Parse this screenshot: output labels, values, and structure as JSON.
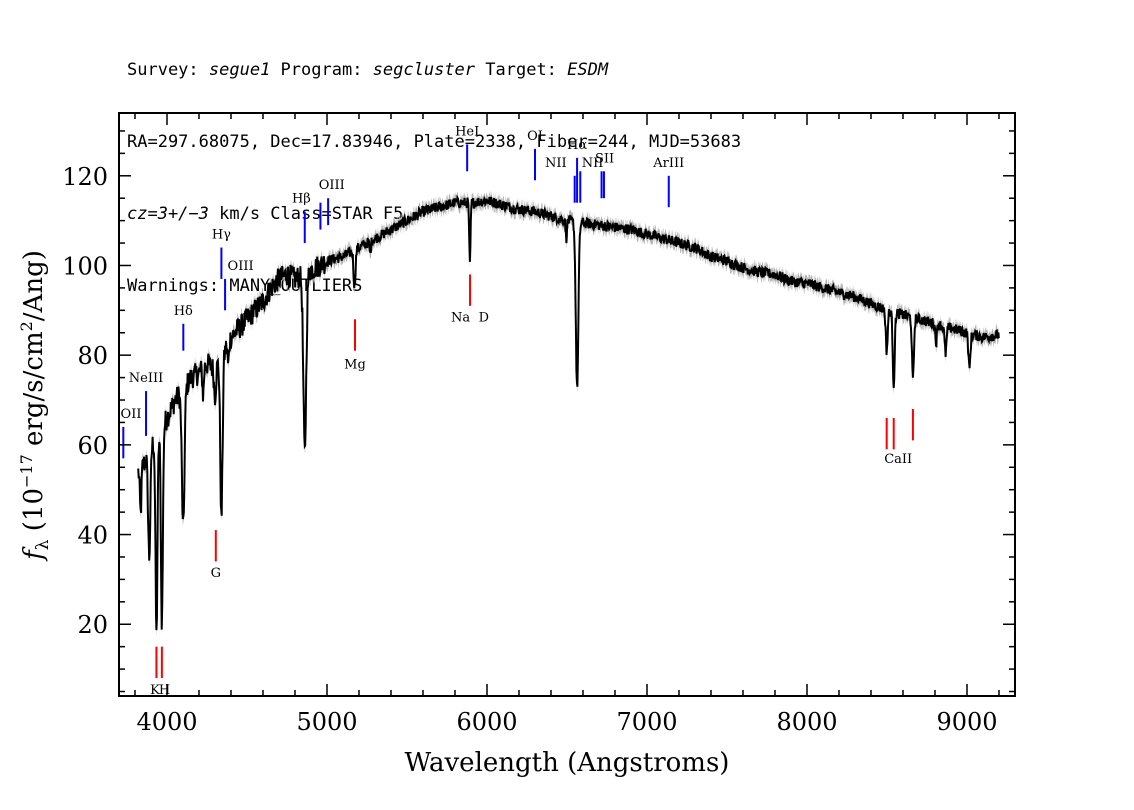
{
  "header": {
    "line1": [
      {
        "text": "Survey: ",
        "italic": false
      },
      {
        "text": "segue1",
        "italic": true
      },
      {
        "text": " Program: ",
        "italic": false
      },
      {
        "text": "segcluster",
        "italic": true
      },
      {
        "text": " Target: ",
        "italic": false
      },
      {
        "text": "ESDM",
        "italic": true
      }
    ],
    "line2": "RA=297.68075, Dec=17.83946, Plate=2338, Fiber=244, MJD=53683",
    "line3": [
      {
        "text": "cz=3+/−3",
        "italic": true
      },
      {
        "text": " km/s Class=STAR F5",
        "italic": false
      }
    ],
    "line4": "Warnings: MANY_OUTLIERS"
  },
  "chart_data": {
    "type": "line",
    "xlabel": "Wavelength (Angstroms)",
    "ylabel_parts": {
      "f": "f",
      "sub": "λ",
      "pre": " (10",
      "exp1": "−17",
      "mid": " erg/s/cm",
      "exp2": "2",
      "post": "/Ang)"
    },
    "xlim": [
      3700,
      9300
    ],
    "ylim": [
      4,
      134
    ],
    "x_ticks": [
      4000,
      5000,
      6000,
      7000,
      8000,
      9000
    ],
    "y_ticks": [
      20,
      40,
      60,
      80,
      100,
      120
    ],
    "x_minor_step": 200,
    "y_minor_step": 5,
    "colors": {
      "spectrum": "#000000",
      "error": "#b3b3b3",
      "emission": "#0000ff",
      "absorption": "#ff0000"
    },
    "continuum": [
      [
        3820,
        54
      ],
      [
        3860,
        56
      ],
      [
        3900,
        60
      ],
      [
        3950,
        62
      ],
      [
        4000,
        66
      ],
      [
        4050,
        70
      ],
      [
        4100,
        72
      ],
      [
        4150,
        75
      ],
      [
        4200,
        76
      ],
      [
        4250,
        78
      ],
      [
        4300,
        77
      ],
      [
        4350,
        80
      ],
      [
        4400,
        84
      ],
      [
        4450,
        86
      ],
      [
        4500,
        88
      ],
      [
        4550,
        90
      ],
      [
        4600,
        92
      ],
      [
        4650,
        95
      ],
      [
        4700,
        97
      ],
      [
        4750,
        98
      ],
      [
        4800,
        97
      ],
      [
        4850,
        98
      ],
      [
        4900,
        99
      ],
      [
        4950,
        100
      ],
      [
        5000,
        101
      ],
      [
        5100,
        102
      ],
      [
        5200,
        104
      ],
      [
        5300,
        106
      ],
      [
        5400,
        108
      ],
      [
        5500,
        110
      ],
      [
        5600,
        112
      ],
      [
        5700,
        113
      ],
      [
        5800,
        114
      ],
      [
        5900,
        114
      ],
      [
        6000,
        114.5
      ],
      [
        6100,
        113.5
      ],
      [
        6200,
        112.5
      ],
      [
        6300,
        112
      ],
      [
        6400,
        111
      ],
      [
        6500,
        110
      ],
      [
        6600,
        109.5
      ],
      [
        6700,
        109
      ],
      [
        6800,
        108.5
      ],
      [
        6900,
        108
      ],
      [
        7000,
        107
      ],
      [
        7100,
        106
      ],
      [
        7200,
        105
      ],
      [
        7300,
        104
      ],
      [
        7400,
        102
      ],
      [
        7500,
        101
      ],
      [
        7600,
        99.5
      ],
      [
        7700,
        98.5
      ],
      [
        7800,
        98
      ],
      [
        7900,
        96.5
      ],
      [
        8000,
        96
      ],
      [
        8100,
        95
      ],
      [
        8200,
        94
      ],
      [
        8300,
        93
      ],
      [
        8400,
        91.5
      ],
      [
        8500,
        90
      ],
      [
        8600,
        89
      ],
      [
        8700,
        88
      ],
      [
        8800,
        87
      ],
      [
        8900,
        86
      ],
      [
        9000,
        85
      ],
      [
        9100,
        84
      ],
      [
        9200,
        84.5
      ]
    ],
    "absorption_features": [
      {
        "center": 3835,
        "depth": 10,
        "width": 5
      },
      {
        "center": 3889,
        "depth": 24,
        "width": 7
      },
      {
        "center": 3934,
        "depth": 44,
        "width": 6
      },
      {
        "center": 3968,
        "depth": 43,
        "width": 6
      },
      {
        "center": 4101,
        "depth": 31,
        "width": 8
      },
      {
        "center": 4226,
        "depth": 6,
        "width": 4
      },
      {
        "center": 4300,
        "depth": 6,
        "width": 6
      },
      {
        "center": 4340,
        "depth": 36,
        "width": 7
      },
      {
        "center": 4383,
        "depth": 5,
        "width": 4
      },
      {
        "center": 4861,
        "depth": 40,
        "width": 9
      },
      {
        "center": 5172,
        "depth": 8,
        "width": 6
      },
      {
        "center": 5270,
        "depth": 3,
        "width": 4
      },
      {
        "center": 5893,
        "depth": 14,
        "width": 4
      },
      {
        "center": 6495,
        "depth": 4,
        "width": 4
      },
      {
        "center": 6563,
        "depth": 37,
        "width": 8
      },
      {
        "center": 8498,
        "depth": 9,
        "width": 6
      },
      {
        "center": 8542,
        "depth": 16,
        "width": 6
      },
      {
        "center": 8662,
        "depth": 14,
        "width": 6
      },
      {
        "center": 8807,
        "depth": 4,
        "width": 5
      },
      {
        "center": 8866,
        "depth": 6,
        "width": 6
      },
      {
        "center": 9015,
        "depth": 8,
        "width": 6
      },
      {
        "center": 9229,
        "depth": 7,
        "width": 6
      }
    ],
    "noise_amplitude": 1.2,
    "emission_lines": [
      {
        "label": "OII",
        "x": 3727,
        "y0": 57,
        "y1": 64
      },
      {
        "label": "NeIII",
        "x": 3869,
        "y0": 62,
        "y1": 72
      },
      {
        "label": "Hδ",
        "x": 4102,
        "y0": 81,
        "y1": 87
      },
      {
        "label": "Hγ",
        "x": 4340,
        "y0": 97,
        "y1": 104
      },
      {
        "label": "OIII",
        "x": 4363,
        "y0": 90,
        "y1": 97
      },
      {
        "label": "Hβ",
        "x": 4861,
        "y0": 105,
        "y1": 112
      },
      {
        "label": "OIII",
        "x": 4959,
        "y0": 108,
        "y1": 114
      },
      {
        "label": "OIII",
        "x": 5007,
        "y0": 109,
        "y1": 115
      },
      {
        "label": "HeI",
        "x": 5876,
        "y0": 121,
        "y1": 127
      },
      {
        "label": "OI",
        "x": 6300,
        "y0": 119,
        "y1": 126
      },
      {
        "label": "NII",
        "x": 6548,
        "y0": 114,
        "y1": 120
      },
      {
        "label": "Hα",
        "x": 6563,
        "y0": 114,
        "y1": 124
      },
      {
        "label": "NII",
        "x": 6583,
        "y0": 114,
        "y1": 121
      },
      {
        "label": "SII",
        "x": 6716,
        "y0": 115,
        "y1": 121
      },
      {
        "label": "SII",
        "x": 6731,
        "y0": 115,
        "y1": 121
      },
      {
        "label": "ArIII",
        "x": 7136,
        "y0": 113,
        "y1": 120
      }
    ],
    "emission_labels": [
      {
        "text": "OII",
        "x": 3727,
        "y": 66
      },
      {
        "text": "NeIII",
        "x": 3869,
        "y": 74
      },
      {
        "text": "Hδ",
        "x": 4102,
        "y": 89
      },
      {
        "text": "Hγ",
        "x": 4340,
        "y": 106
      },
      {
        "text": "OIII",
        "x": 4460,
        "y": 99
      },
      {
        "text": "Hβ",
        "x": 4840,
        "y": 114
      },
      {
        "text": "OIII",
        "x": 5030,
        "y": 117
      },
      {
        "text": "HeI",
        "x": 5876,
        "y": 129
      },
      {
        "text": "OI",
        "x": 6300,
        "y": 128
      },
      {
        "text": "NII",
        "x": 6430,
        "y": 122
      },
      {
        "text": "Hα",
        "x": 6563,
        "y": 126
      },
      {
        "text": "NII",
        "x": 6660,
        "y": 122
      },
      {
        "text": "SII",
        "x": 6735,
        "y": 123
      },
      {
        "text": "ArIII",
        "x": 7136,
        "y": 122
      }
    ],
    "absorption_lines": [
      {
        "label": "K",
        "x": 3934,
        "y0": 8,
        "y1": 15
      },
      {
        "label": "H",
        "x": 3968,
        "y0": 8,
        "y1": 15
      },
      {
        "label": "G",
        "x": 4305,
        "y0": 34,
        "y1": 41
      },
      {
        "label": "Mg",
        "x": 5175,
        "y0": 81,
        "y1": 88
      },
      {
        "label": "Na",
        "x": 5894,
        "y0": 91,
        "y1": 98
      },
      {
        "label": "CaII",
        "x": 8498,
        "y0": 59,
        "y1": 66
      },
      {
        "label": "CaII",
        "x": 8542,
        "y0": 59,
        "y1": 66
      },
      {
        "label": "CaII",
        "x": 8662,
        "y0": 61,
        "y1": 68
      }
    ],
    "absorption_labels": [
      {
        "text": "K",
        "x": 3925,
        "y": 4.5
      },
      {
        "text": "H",
        "x": 3985,
        "y": 4.5
      },
      {
        "text": "G",
        "x": 4305,
        "y": 30.5
      },
      {
        "text": "Mg",
        "x": 5175,
        "y": 77
      },
      {
        "text": "Na",
        "x": 5835,
        "y": 87.5
      },
      {
        "text": "D",
        "x": 5980,
        "y": 87.5
      },
      {
        "text": "CaII",
        "x": 8570,
        "y": 56
      }
    ]
  }
}
